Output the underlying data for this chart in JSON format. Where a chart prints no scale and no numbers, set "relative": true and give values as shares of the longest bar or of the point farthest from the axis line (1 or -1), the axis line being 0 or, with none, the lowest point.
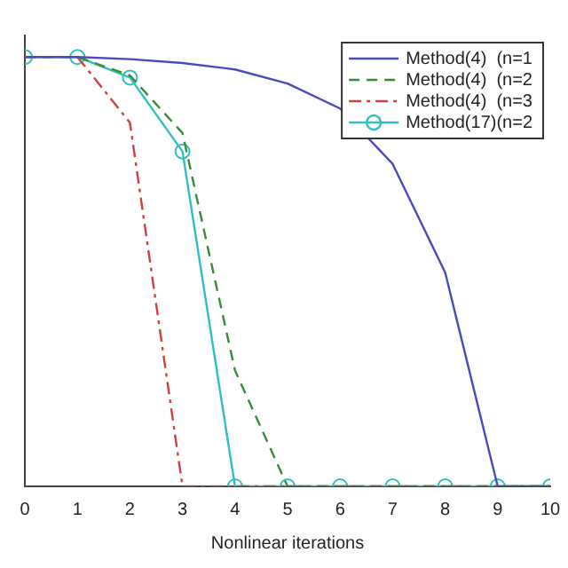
{
  "chart_data": {
    "type": "line",
    "xlabel": "Nonlinear iterations",
    "x": [
      0,
      1,
      2,
      3,
      4,
      5,
      6,
      7,
      8,
      9,
      10
    ],
    "xlim": [
      0,
      10
    ],
    "xticks": [
      0,
      1,
      2,
      3,
      4,
      5,
      6,
      7,
      8,
      9,
      10
    ],
    "relative": true,
    "tick_labels": "x",
    "grid": false,
    "legend": "top right",
    "series": [
      {
        "name": "Method(4)  (n=1",
        "color": "#4a4ac0",
        "line_style": "solid",
        "marker": "none",
        "values": [
          1,
          1,
          0.995,
          0.986,
          0.971,
          0.938,
          0.88,
          0.751,
          0.498,
          0,
          0
        ]
      },
      {
        "name": "Method(4)  (n=2",
        "color": "#3a8a3a",
        "line_style": "dashed",
        "marker": "none",
        "values": [
          1,
          1,
          0.957,
          0.823,
          0.27,
          0,
          0,
          0,
          0,
          0,
          0
        ]
      },
      {
        "name": "Method(4)  (n=3",
        "color": "#d04040",
        "line_style": "dashdot",
        "marker": "none",
        "values": [
          null,
          1,
          0.847,
          0,
          0,
          0,
          0,
          0,
          0,
          0,
          0
        ]
      },
      {
        "name": "Method(17)(n=2",
        "color": "#30c0c0",
        "line_style": "solid",
        "marker": "circle",
        "values": [
          1,
          1,
          0.952,
          0.78,
          0,
          0,
          0,
          0,
          0,
          0,
          0
        ]
      }
    ]
  }
}
